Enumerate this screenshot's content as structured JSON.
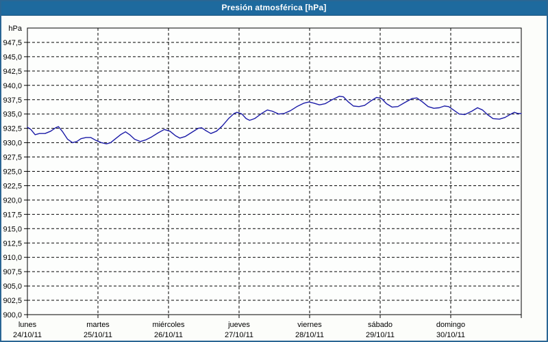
{
  "header": {
    "title": "Presión atmosférica [hPa]"
  },
  "colors": {
    "titlebar_bg": "#1e6a9e",
    "frame_border": "#2a6694",
    "background": "#fcfdfa",
    "plot_bg": "#fdfefd",
    "grid": "#000000",
    "axis": "#000000",
    "line": "#1a1aa6"
  },
  "chart_data": {
    "type": "line",
    "title": "Presión atmosférica [hPa]",
    "ylabel": "hPa",
    "unit_label": "hPa",
    "grid": "dashed",
    "legend": "none",
    "y_axis": {
      "min": 900,
      "max": 950,
      "tick_step": 2.5,
      "tick_labels": [
        "947,5",
        "945,0",
        "942,5",
        "940,0",
        "937,5",
        "935,0",
        "932,5",
        "930,0",
        "927,5",
        "925,0",
        "922,5",
        "920,0",
        "917,5",
        "915,0",
        "912,5",
        "910,0",
        "907,5",
        "905,0",
        "902,5",
        "900,0"
      ]
    },
    "x_axis": {
      "unit": "days",
      "range_days": 7,
      "days": [
        {
          "name": "lunes",
          "date": "24/10/11"
        },
        {
          "name": "martes",
          "date": "25/10/11"
        },
        {
          "name": "miércoles",
          "date": "26/10/11"
        },
        {
          "name": "jueves",
          "date": "27/10/11"
        },
        {
          "name": "viernes",
          "date": "28/10/11"
        },
        {
          "name": "sábado",
          "date": "29/10/11"
        },
        {
          "name": "domingo",
          "date": "30/10/11"
        }
      ]
    },
    "series": [
      {
        "name": "Presión atmosférica",
        "color": "#1a1aa6",
        "points": [
          [
            0.0,
            932.7
          ],
          [
            0.05,
            932.3
          ],
          [
            0.11,
            931.4
          ],
          [
            0.17,
            931.6
          ],
          [
            0.25,
            931.6
          ],
          [
            0.33,
            932.0
          ],
          [
            0.4,
            932.6
          ],
          [
            0.44,
            932.8
          ],
          [
            0.5,
            931.9
          ],
          [
            0.57,
            930.6
          ],
          [
            0.64,
            930.0
          ],
          [
            0.7,
            930.2
          ],
          [
            0.76,
            930.7
          ],
          [
            0.83,
            930.9
          ],
          [
            0.9,
            930.9
          ],
          [
            0.97,
            930.4
          ],
          [
            1.05,
            930.0
          ],
          [
            1.12,
            929.8
          ],
          [
            1.18,
            930.0
          ],
          [
            1.25,
            930.7
          ],
          [
            1.32,
            931.4
          ],
          [
            1.39,
            931.9
          ],
          [
            1.45,
            931.4
          ],
          [
            1.52,
            930.6
          ],
          [
            1.6,
            930.2
          ],
          [
            1.68,
            930.5
          ],
          [
            1.76,
            931.0
          ],
          [
            1.85,
            931.7
          ],
          [
            1.94,
            932.3
          ],
          [
            2.02,
            932.0
          ],
          [
            2.1,
            931.2
          ],
          [
            2.16,
            930.8
          ],
          [
            2.24,
            931.1
          ],
          [
            2.33,
            931.8
          ],
          [
            2.42,
            932.5
          ],
          [
            2.47,
            932.6
          ],
          [
            2.53,
            932.1
          ],
          [
            2.6,
            931.6
          ],
          [
            2.68,
            932.0
          ],
          [
            2.76,
            932.9
          ],
          [
            2.85,
            934.2
          ],
          [
            2.93,
            935.1
          ],
          [
            2.97,
            935.3
          ],
          [
            3.04,
            935.0
          ],
          [
            3.1,
            934.2
          ],
          [
            3.15,
            933.9
          ],
          [
            3.22,
            934.2
          ],
          [
            3.32,
            935.1
          ],
          [
            3.4,
            935.7
          ],
          [
            3.47,
            935.5
          ],
          [
            3.56,
            935.0
          ],
          [
            3.64,
            935.1
          ],
          [
            3.73,
            935.6
          ],
          [
            3.82,
            936.3
          ],
          [
            3.92,
            936.9
          ],
          [
            3.99,
            937.1
          ],
          [
            4.06,
            936.9
          ],
          [
            4.14,
            936.6
          ],
          [
            4.22,
            936.8
          ],
          [
            4.32,
            937.5
          ],
          [
            4.42,
            938.1
          ],
          [
            4.48,
            938.0
          ],
          [
            4.55,
            937.1
          ],
          [
            4.62,
            936.4
          ],
          [
            4.7,
            936.3
          ],
          [
            4.78,
            936.5
          ],
          [
            4.87,
            937.3
          ],
          [
            4.95,
            937.9
          ],
          [
            5.02,
            937.7
          ],
          [
            5.09,
            936.8
          ],
          [
            5.17,
            936.2
          ],
          [
            5.25,
            936.3
          ],
          [
            5.35,
            937.0
          ],
          [
            5.45,
            937.7
          ],
          [
            5.52,
            937.8
          ],
          [
            5.6,
            937.1
          ],
          [
            5.68,
            936.3
          ],
          [
            5.76,
            936.0
          ],
          [
            5.84,
            936.1
          ],
          [
            5.91,
            936.4
          ],
          [
            5.97,
            936.3
          ],
          [
            6.04,
            935.7
          ],
          [
            6.12,
            935.0
          ],
          [
            6.2,
            934.9
          ],
          [
            6.3,
            935.5
          ],
          [
            6.38,
            936.1
          ],
          [
            6.45,
            935.7
          ],
          [
            6.52,
            934.9
          ],
          [
            6.6,
            934.2
          ],
          [
            6.69,
            934.1
          ],
          [
            6.77,
            934.4
          ],
          [
            6.84,
            934.9
          ],
          [
            6.9,
            935.3
          ],
          [
            6.95,
            935.1
          ],
          [
            7.0,
            935.1
          ]
        ]
      }
    ]
  }
}
